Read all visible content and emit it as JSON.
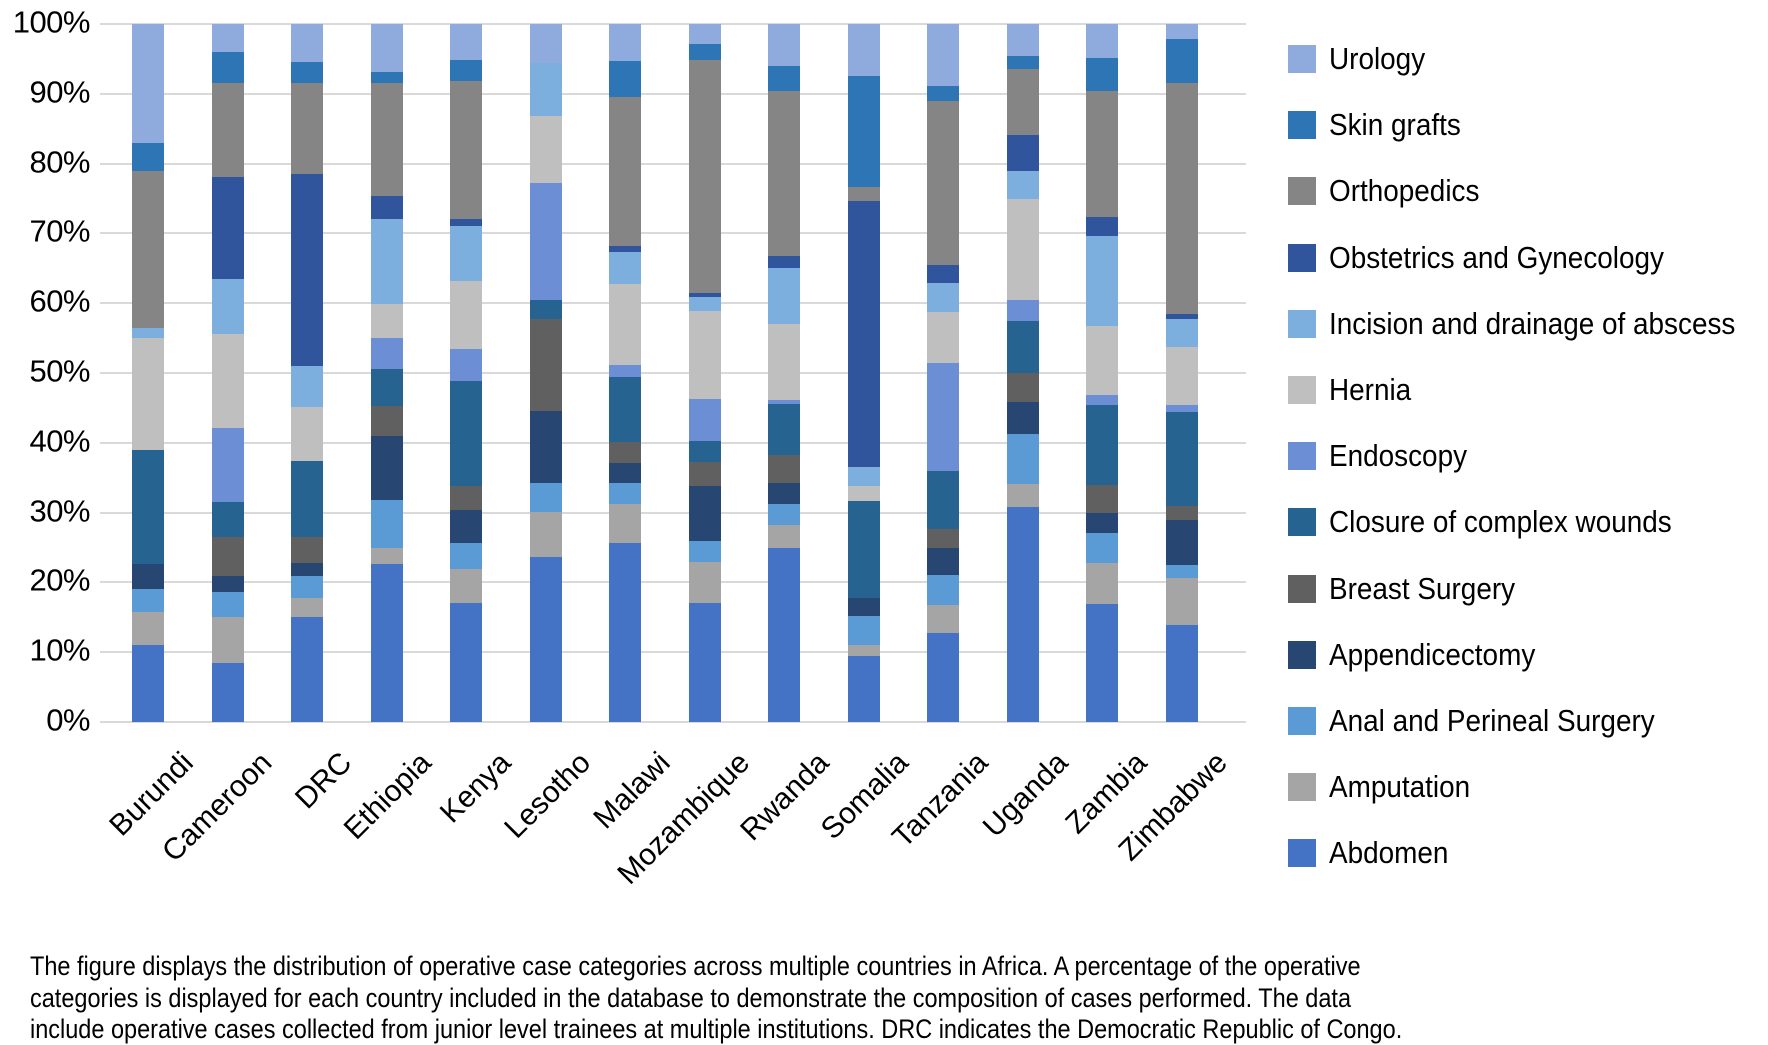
{
  "y_axis": {
    "ticks": [
      "0%",
      "10%",
      "20%",
      "30%",
      "40%",
      "50%",
      "60%",
      "70%",
      "80%",
      "90%",
      "100%"
    ]
  },
  "legend": {
    "items": [
      {
        "label": "Urology",
        "color": "#8faadc"
      },
      {
        "label": "Skin grafts",
        "color": "#2e75b6"
      },
      {
        "label": "Orthopedics",
        "color": "#858585"
      },
      {
        "label": "Obstetrics and Gynecology",
        "color": "#30559c"
      },
      {
        "label": "Incision and drainage of abscess",
        "color": "#7caede"
      },
      {
        "label": "Hernia",
        "color": "#bfbfbf"
      },
      {
        "label": "Endoscopy",
        "color": "#6b8ed4"
      },
      {
        "label": "Closure of complex wounds",
        "color": "#276391"
      },
      {
        "label": "Breast Surgery",
        "color": "#606060"
      },
      {
        "label": "Appendicectomy",
        "color": "#274672"
      },
      {
        "label": "Anal and Perineal Surgery",
        "color": "#5b9bd5"
      },
      {
        "label": "Amputation",
        "color": "#a5a5a5"
      },
      {
        "label": "Abdomen",
        "color": "#4472c4"
      }
    ]
  },
  "chart_data": {
    "type": "bar",
    "subtype": "stacked-100",
    "title": "",
    "xlabel": "",
    "ylabel": "",
    "ylim": [
      0,
      100
    ],
    "grid": true,
    "legend_position": "right",
    "categories": [
      "Burundi",
      "Cameroon",
      "DRC",
      "Ethiopia",
      "Kenya",
      "Lesotho",
      "Malawi",
      "Mozambique",
      "Rwanda",
      "Somalia",
      "Tanzania",
      "Uganda",
      "Zambia",
      "Zimbabwe"
    ],
    "series": [
      {
        "name": "Abdomen",
        "color": "#4472c4",
        "values": [
          11.1,
          8.5,
          15.0,
          22.6,
          17.0,
          23.7,
          25.7,
          17.0,
          24.9,
          9.4,
          12.8,
          30.8,
          16.9,
          13.9
        ]
      },
      {
        "name": "Amputation",
        "color": "#a5a5a5",
        "values": [
          4.7,
          6.5,
          2.7,
          2.4,
          4.9,
          6.4,
          5.6,
          5.9,
          3.3,
          1.7,
          4.0,
          3.3,
          5.9,
          6.8
        ]
      },
      {
        "name": "Anal and Perineal Surgery",
        "color": "#5b9bd5",
        "values": [
          3.3,
          3.6,
          3.2,
          6.8,
          3.8,
          4.2,
          3.0,
          3.0,
          3.1,
          4.1,
          4.2,
          7.2,
          4.3,
          1.8
        ]
      },
      {
        "name": "Appendicectomy",
        "color": "#274672",
        "values": [
          3.6,
          2.4,
          1.9,
          9.2,
          4.7,
          10.2,
          2.8,
          8.0,
          3.0,
          2.5,
          3.9,
          4.6,
          2.9,
          6.4
        ]
      },
      {
        "name": "Breast Surgery",
        "color": "#606060",
        "values": [
          0.0,
          5.6,
          3.7,
          4.3,
          3.5,
          13.3,
          3.0,
          3.4,
          4.0,
          0.0,
          2.7,
          4.1,
          4.0,
          2.1
        ]
      },
      {
        "name": "Closure of complex wounds",
        "color": "#276391",
        "values": [
          16.3,
          5.0,
          10.9,
          5.4,
          15.0,
          2.6,
          9.4,
          3.0,
          7.2,
          13.9,
          8.4,
          7.5,
          11.4,
          13.4
        ]
      },
      {
        "name": "Endoscopy",
        "color": "#6b8ed4",
        "values": [
          0.0,
          10.5,
          0.0,
          4.4,
          4.6,
          16.8,
          1.7,
          6.1,
          0.7,
          0.0,
          15.5,
          2.9,
          1.4,
          1.0
        ]
      },
      {
        "name": "Hernia",
        "color": "#bfbfbf",
        "values": [
          16.0,
          13.5,
          7.8,
          4.9,
          9.7,
          9.6,
          11.6,
          12.5,
          10.8,
          2.2,
          7.3,
          14.6,
          10.0,
          8.4
        ]
      },
      {
        "name": "Incision and drainage of abscess",
        "color": "#7caede",
        "values": [
          1.5,
          8.0,
          5.8,
          12.1,
          7.9,
          7.6,
          4.5,
          2.1,
          8.0,
          2.7,
          4.1,
          4.0,
          12.8,
          4.0
        ]
      },
      {
        "name": "Obstetrics and Gynecology",
        "color": "#30559c",
        "values": [
          0.0,
          14.5,
          27.5,
          3.4,
          1.0,
          0.0,
          0.9,
          0.5,
          1.8,
          38.2,
          2.6,
          5.1,
          2.8,
          0.7
        ]
      },
      {
        "name": "Orthopedics",
        "color": "#858585",
        "values": [
          22.5,
          13.5,
          13.0,
          16.2,
          19.8,
          0.0,
          21.3,
          33.4,
          23.6,
          1.9,
          23.5,
          9.5,
          18.0,
          33.1
        ]
      },
      {
        "name": "Skin grafts",
        "color": "#2e75b6",
        "values": [
          4.0,
          4.5,
          3.0,
          1.6,
          3.1,
          0.0,
          5.2,
          2.4,
          3.6,
          16.0,
          2.1,
          1.8,
          4.7,
          6.3
        ]
      },
      {
        "name": "Urology",
        "color": "#8faadc",
        "values": [
          17.0,
          4.0,
          5.5,
          6.8,
          5.1,
          5.6,
          5.3,
          2.8,
          6.0,
          7.4,
          8.9,
          4.6,
          4.9,
          2.1
        ]
      }
    ]
  },
  "caption": {
    "lines": [
      "The figure displays the distribution of operative case categories across multiple countries in Africa. A percentage of the operative",
      "categories is displayed for each country included in the database to demonstrate the composition of cases performed. The data",
      "include operative cases collected from junior level trainees at multiple institutions. DRC indicates the Democratic Republic of Congo."
    ]
  }
}
